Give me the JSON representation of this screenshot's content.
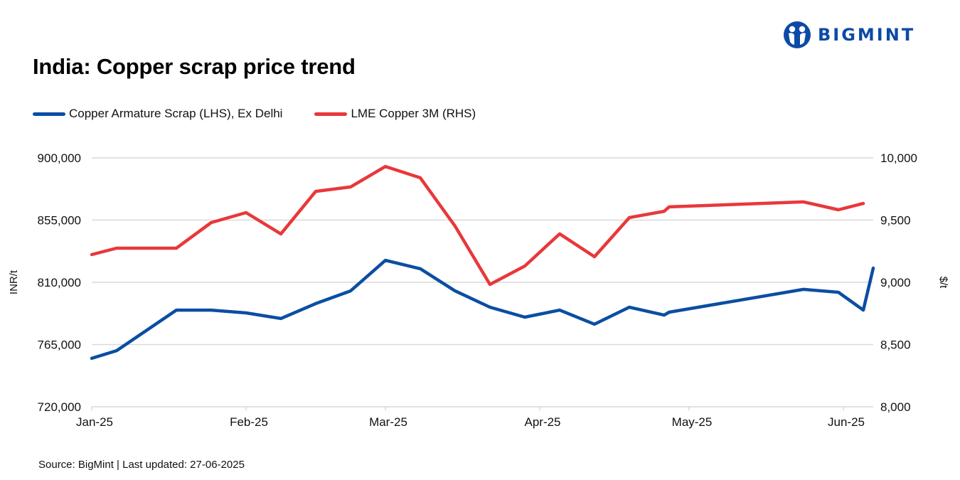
{
  "header": {
    "title": "India: Copper scrap price trend",
    "logo_text": "BIGMINT",
    "logo_icon": "bigmint-people-icon"
  },
  "legend": [
    {
      "label": "Copper Armature Scrap (LHS), Ex Delhi",
      "color": "#0b4ea2"
    },
    {
      "label": "LME Copper 3M (RHS)",
      "color": "#e8383a"
    }
  ],
  "footer": {
    "source": "Source: BigMint | Last updated: 27-06-2025"
  },
  "chart_data": {
    "type": "line",
    "title": "India: Copper scrap price trend",
    "xlabel": "",
    "ylabel": "INR/t",
    "ylabel_right": "$/t",
    "ylim": [
      720000,
      900000
    ],
    "ylim_right": [
      8000,
      10000
    ],
    "yticks": [
      "900,000",
      "855,000",
      "810,000",
      "765,000",
      "720,000"
    ],
    "yticks_right": [
      "10,000",
      "9,500",
      "9,000",
      "8,500",
      "8,000"
    ],
    "xtick_labels": [
      "Jan-25",
      "Feb-25",
      "Mar-25",
      "Apr-25",
      "May-25",
      "Jun-25"
    ],
    "grid": true,
    "legend_position": "top-left",
    "x": [
      "2025-01-01",
      "2025-01-06",
      "2025-01-18",
      "2025-01-25",
      "2025-02-01",
      "2025-02-08",
      "2025-02-15",
      "2025-02-22",
      "2025-03-01",
      "2025-03-08",
      "2025-03-15",
      "2025-03-22",
      "2025-03-29",
      "2025-04-05",
      "2025-04-12",
      "2025-04-19",
      "2025-04-26",
      "2025-04-27",
      "2025-05-24",
      "2025-05-31",
      "2025-06-05",
      "2025-06-07"
    ],
    "series": [
      {
        "name": "Copper Armature Scrap (LHS), Ex Delhi",
        "axis": "left",
        "color": "#0b4ea2",
        "values": [
          755000,
          760600,
          789900,
          789900,
          787900,
          783800,
          794600,
          803800,
          825900,
          819800,
          803800,
          792000,
          784800,
          789900,
          779700,
          792000,
          786300,
          788400,
          804900,
          802800,
          789900,
          820300
        ]
      },
      {
        "name": "LME Copper 3M (RHS)",
        "axis": "right",
        "color": "#e8383a",
        "values": [
          9223,
          9274,
          9274,
          9480,
          9560,
          9389,
          9731,
          9766,
          9931,
          9840,
          9451,
          8983,
          9131,
          9389,
          9206,
          9520,
          9571,
          9606,
          9646,
          9583,
          9634,
          null
        ]
      }
    ]
  }
}
